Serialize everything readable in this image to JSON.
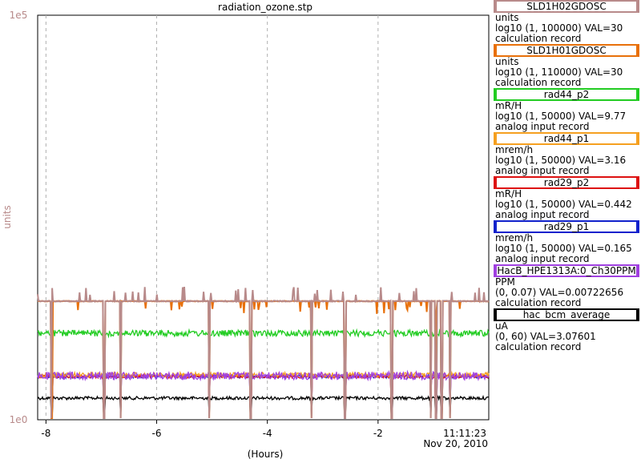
{
  "chart_data": {
    "type": "line",
    "title": "radiation_ozone.stp",
    "xlabel": "(Hours)",
    "ylabel": "units",
    "y_scale": "log",
    "ylim": [
      1,
      100000
    ],
    "ytick_top": "1e5",
    "ytick_bottom": "1e0",
    "xlim": [
      -8.15,
      0
    ],
    "xticks": [
      -8,
      -6,
      -4,
      -2
    ],
    "xtick_labels": [
      "-8",
      "-6",
      "-4",
      "-2"
    ],
    "x_end_time": "11:11:23",
    "x_end_date": "Nov 20, 2010",
    "grid": true,
    "legend_position": "right",
    "series": [
      {
        "name": "SLD1H02GDOSC",
        "color": "#b88a8a",
        "units": "units",
        "range": "log10 (1, 100000) VAL=30",
        "type": "calculation record",
        "baseline": 30
      },
      {
        "name": "SLD1H01GDOSC",
        "color": "#e8700a",
        "units": "units",
        "range": "log10 (1, 110000) VAL=30",
        "type": "calculation record",
        "baseline": 30
      },
      {
        "name": "rad44_p2",
        "color": "#22cc22",
        "units": "mR/H",
        "range": "log10 (1, 50000) VAL=9.77",
        "type": "analog input record",
        "baseline": 9.77
      },
      {
        "name": "rad44_p1",
        "color": "#f5a020",
        "units": "mrem/h",
        "range": "log10 (1, 50000) VAL=3.16",
        "type": "analog input record",
        "baseline": 3.16
      },
      {
        "name": "rad29_p2",
        "color": "#dd1111",
        "units": "mR/H",
        "range": "log10 (1, 50000) VAL=0.442",
        "type": "analog input record",
        "baseline": 0.442
      },
      {
        "name": "rad29_p1",
        "color": "#1122cc",
        "units": "mrem/h",
        "range": "log10 (1, 50000) VAL=0.165",
        "type": "analog input record",
        "baseline": 0.165
      },
      {
        "name": "HacB_HPE1313A:0_Ch30PPM",
        "color": "#a040e0",
        "units": "PPM",
        "range": "(0, 0.07) VAL=0.00722656",
        "type": "calculation record",
        "baseline": 0.00722656
      },
      {
        "name": "hac_bcm_average",
        "color": "#000000",
        "units": "uA",
        "range": "(0, 60) VAL=3.07601",
        "type": "calculation record",
        "baseline": 3.07601
      }
    ]
  }
}
